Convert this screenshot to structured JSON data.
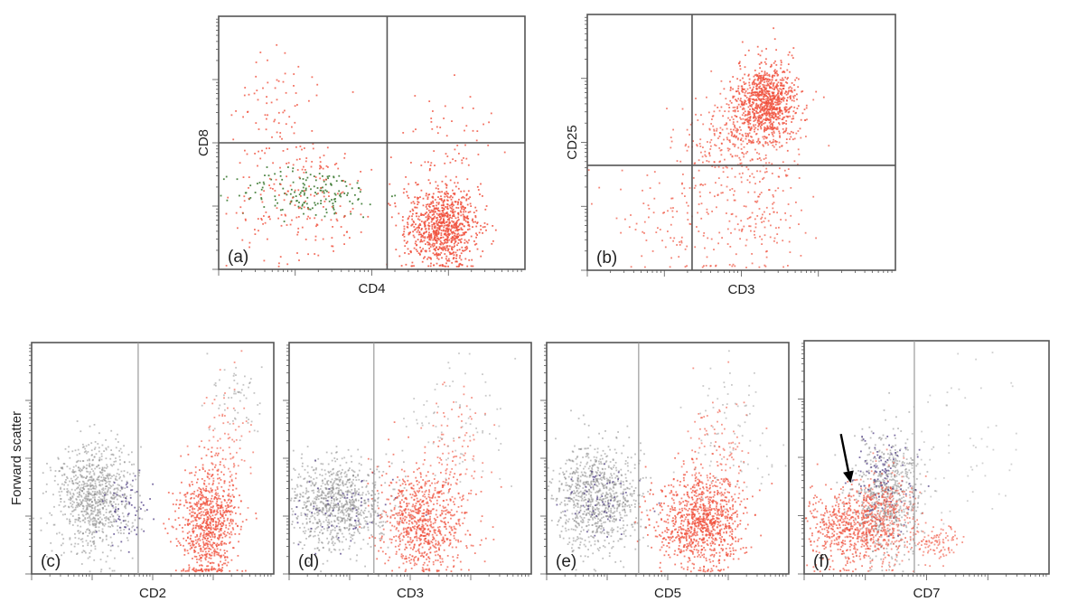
{
  "chart_data": [
    {
      "id": "a",
      "type": "scatter",
      "panel_label": "(a)",
      "xlabel": "CD4",
      "ylabel": "CD8",
      "axis_scale": "log",
      "xlim": [
        0,
        1
      ],
      "ylim": [
        0,
        1
      ],
      "quadrant_gate": {
        "x": 0.55,
        "y": 0.5
      },
      "colors": {
        "bg": "#a0a0a0",
        "pos": "#f0503c",
        "alt": "#3c7a32"
      },
      "populations": [
        {
          "color": "pos",
          "n": 900,
          "cx": 0.73,
          "cy": 0.17,
          "sx": 0.06,
          "sy": 0.08,
          "alpha": 0.85
        },
        {
          "color": "alt",
          "n": 170,
          "cx": 0.3,
          "cy": 0.3,
          "sx": 0.12,
          "sy": 0.05,
          "alpha": 0.9
        },
        {
          "color": "pos",
          "n": 200,
          "cx": 0.27,
          "cy": 0.28,
          "sx": 0.12,
          "sy": 0.12,
          "alpha": 0.8
        },
        {
          "color": "pos",
          "n": 70,
          "cx": 0.2,
          "cy": 0.62,
          "sx": 0.1,
          "sy": 0.1,
          "alpha": 0.8
        },
        {
          "color": "pos",
          "n": 60,
          "cx": 0.75,
          "cy": 0.48,
          "sx": 0.07,
          "sy": 0.12,
          "alpha": 0.8
        }
      ]
    },
    {
      "id": "b",
      "type": "scatter",
      "panel_label": "(b)",
      "xlabel": "CD3",
      "ylabel": "CD25",
      "axis_scale": "log",
      "xlim": [
        0,
        1
      ],
      "ylim": [
        0,
        1
      ],
      "quadrant_gate": {
        "x": 0.34,
        "y": 0.41
      },
      "colors": {
        "bg": "#a0a0a0",
        "pos": "#f0503c",
        "alt": "#3c7a32"
      },
      "populations": [
        {
          "color": "pos",
          "n": 900,
          "cx": 0.58,
          "cy": 0.66,
          "sx": 0.05,
          "sy": 0.075,
          "alpha": 0.8
        },
        {
          "color": "pos",
          "n": 300,
          "cx": 0.5,
          "cy": 0.52,
          "sx": 0.09,
          "sy": 0.09,
          "alpha": 0.7
        },
        {
          "color": "pos",
          "n": 200,
          "cx": 0.35,
          "cy": 0.22,
          "sx": 0.16,
          "sy": 0.13,
          "alpha": 0.7
        },
        {
          "color": "pos",
          "n": 80,
          "cx": 0.58,
          "cy": 0.2,
          "sx": 0.04,
          "sy": 0.12,
          "alpha": 0.7
        }
      ]
    },
    {
      "id": "c",
      "type": "scatter",
      "panel_label": "(c)",
      "xlabel": "CD2",
      "ylabel": "Forward scatter",
      "axis_scale": "log",
      "xlim": [
        0,
        1
      ],
      "ylim": [
        0,
        1
      ],
      "vertical_gate": {
        "x": 0.44
      },
      "colors": {
        "bg": "#8a8a8a",
        "pos": "#f0503c",
        "alt": "#5a4a8c"
      },
      "populations": [
        {
          "color": "bg",
          "n": 900,
          "cx": 0.26,
          "cy": 0.33,
          "sx": 0.08,
          "sy": 0.11,
          "alpha": 0.55
        },
        {
          "color": "alt",
          "n": 60,
          "cx": 0.4,
          "cy": 0.28,
          "sx": 0.05,
          "sy": 0.08,
          "alpha": 0.8
        },
        {
          "color": "pos",
          "n": 800,
          "cx": 0.73,
          "cy": 0.22,
          "sx": 0.06,
          "sy": 0.12,
          "alpha": 0.75
        },
        {
          "color": "pos",
          "n": 90,
          "cx": 0.8,
          "cy": 0.55,
          "sx": 0.05,
          "sy": 0.15,
          "alpha": 0.6
        },
        {
          "color": "bg",
          "n": 60,
          "cx": 0.85,
          "cy": 0.75,
          "sx": 0.05,
          "sy": 0.1,
          "alpha": 0.5
        }
      ]
    },
    {
      "id": "d",
      "type": "scatter",
      "panel_label": "(d)",
      "xlabel": "CD3",
      "ylabel": "",
      "axis_scale": "log",
      "xlim": [
        0,
        1
      ],
      "ylim": [
        0,
        1
      ],
      "vertical_gate": {
        "x": 0.35
      },
      "colors": {
        "bg": "#8a8a8a",
        "pos": "#f0503c",
        "alt": "#5a4a8c"
      },
      "populations": [
        {
          "color": "bg",
          "n": 900,
          "cx": 0.2,
          "cy": 0.3,
          "sx": 0.1,
          "sy": 0.1,
          "alpha": 0.55
        },
        {
          "color": "alt",
          "n": 60,
          "cx": 0.22,
          "cy": 0.27,
          "sx": 0.1,
          "sy": 0.08,
          "alpha": 0.8
        },
        {
          "color": "pos",
          "n": 800,
          "cx": 0.56,
          "cy": 0.24,
          "sx": 0.09,
          "sy": 0.11,
          "alpha": 0.7
        },
        {
          "color": "pos",
          "n": 90,
          "cx": 0.67,
          "cy": 0.55,
          "sx": 0.06,
          "sy": 0.14,
          "alpha": 0.6
        },
        {
          "color": "bg",
          "n": 80,
          "cx": 0.7,
          "cy": 0.65,
          "sx": 0.12,
          "sy": 0.15,
          "alpha": 0.45
        }
      ]
    },
    {
      "id": "e",
      "type": "scatter",
      "panel_label": "(e)",
      "xlabel": "CD5",
      "ylabel": "",
      "axis_scale": "log",
      "xlim": [
        0,
        1
      ],
      "ylim": [
        0,
        1
      ],
      "vertical_gate": {
        "x": 0.38
      },
      "colors": {
        "bg": "#8a8a8a",
        "pos": "#f0503c",
        "alt": "#5a4a8c"
      },
      "populations": [
        {
          "color": "bg",
          "n": 900,
          "cx": 0.21,
          "cy": 0.33,
          "sx": 0.09,
          "sy": 0.11,
          "alpha": 0.55
        },
        {
          "color": "alt",
          "n": 60,
          "cx": 0.22,
          "cy": 0.3,
          "sx": 0.08,
          "sy": 0.08,
          "alpha": 0.8
        },
        {
          "color": "pos",
          "n": 950,
          "cx": 0.64,
          "cy": 0.22,
          "sx": 0.09,
          "sy": 0.1,
          "alpha": 0.75
        },
        {
          "color": "pos",
          "n": 120,
          "cx": 0.72,
          "cy": 0.5,
          "sx": 0.06,
          "sy": 0.15,
          "alpha": 0.6
        },
        {
          "color": "bg",
          "n": 80,
          "cx": 0.75,
          "cy": 0.6,
          "sx": 0.1,
          "sy": 0.15,
          "alpha": 0.45
        }
      ]
    },
    {
      "id": "f",
      "type": "scatter",
      "panel_label": "(f)",
      "xlabel": "CD7",
      "ylabel": "",
      "axis_scale": "log",
      "xlim": [
        0,
        1
      ],
      "ylim": [
        0,
        1
      ],
      "vertical_gate": {
        "x": 0.45
      },
      "arrow": {
        "x1": 0.15,
        "y1": 0.6,
        "x2": 0.19,
        "y2": 0.39
      },
      "colors": {
        "bg": "#8a8a8a",
        "pos": "#f0503c",
        "alt": "#5a4a8c"
      },
      "populations": [
        {
          "color": "bg",
          "n": 700,
          "cx": 0.33,
          "cy": 0.33,
          "sx": 0.07,
          "sy": 0.13,
          "alpha": 0.55
        },
        {
          "color": "alt",
          "n": 100,
          "cx": 0.32,
          "cy": 0.4,
          "sx": 0.06,
          "sy": 0.1,
          "alpha": 0.8
        },
        {
          "color": "pos",
          "n": 600,
          "cx": 0.18,
          "cy": 0.2,
          "sx": 0.1,
          "sy": 0.08,
          "alpha": 0.7
        },
        {
          "color": "pos",
          "n": 300,
          "cx": 0.33,
          "cy": 0.25,
          "sx": 0.07,
          "sy": 0.1,
          "alpha": 0.6
        },
        {
          "color": "pos",
          "n": 100,
          "cx": 0.55,
          "cy": 0.13,
          "sx": 0.05,
          "sy": 0.04,
          "alpha": 0.6
        },
        {
          "color": "bg",
          "n": 60,
          "cx": 0.6,
          "cy": 0.55,
          "sx": 0.12,
          "sy": 0.18,
          "alpha": 0.4
        }
      ]
    }
  ]
}
